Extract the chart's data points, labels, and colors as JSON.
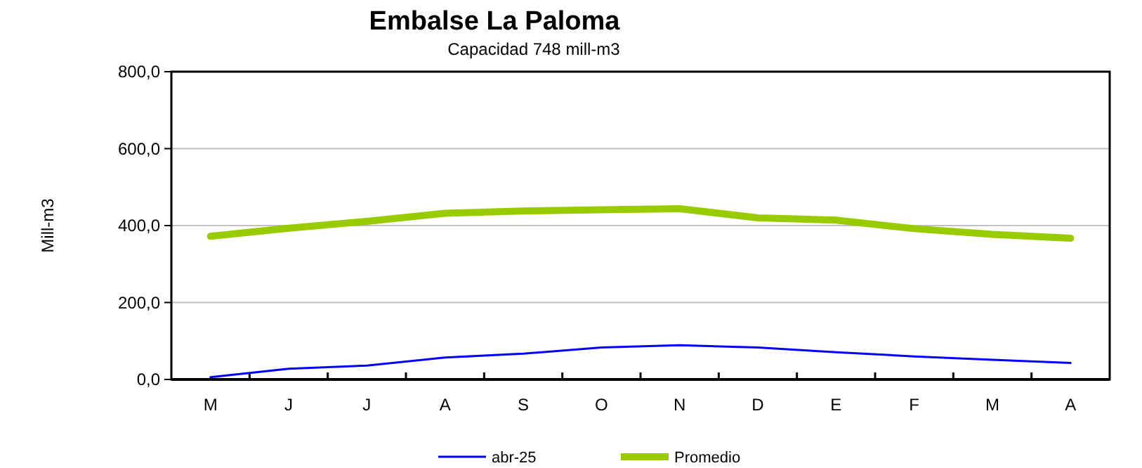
{
  "chart_data": {
    "type": "line",
    "title": "Embalse La Paloma",
    "subtitle": "Capacidad 748 mill-m3",
    "ylabel": "Mill-m3",
    "categories": [
      "M",
      "J",
      "J",
      "A",
      "S",
      "O",
      "N",
      "D",
      "E",
      "F",
      "M",
      "A"
    ],
    "ylim": [
      0,
      800
    ],
    "yticks": [
      {
        "value": 0,
        "label": "0,0"
      },
      {
        "value": 200,
        "label": "200,0"
      },
      {
        "value": 400,
        "label": "400,0"
      },
      {
        "value": 600,
        "label": "600,0"
      },
      {
        "value": 800,
        "label": "800,0"
      }
    ],
    "grid": "y",
    "legend": "bottom",
    "series": [
      {
        "name": "abr-25",
        "color": "#0000ff",
        "values": [
          6,
          28,
          36,
          57,
          67,
          83,
          89,
          83,
          71,
          60,
          51,
          43
        ]
      },
      {
        "name": "Promedio",
        "color": "#99cc00",
        "values": [
          372,
          393,
          411,
          432,
          438,
          441,
          444,
          420,
          414,
          392,
          377,
          367
        ]
      }
    ]
  }
}
